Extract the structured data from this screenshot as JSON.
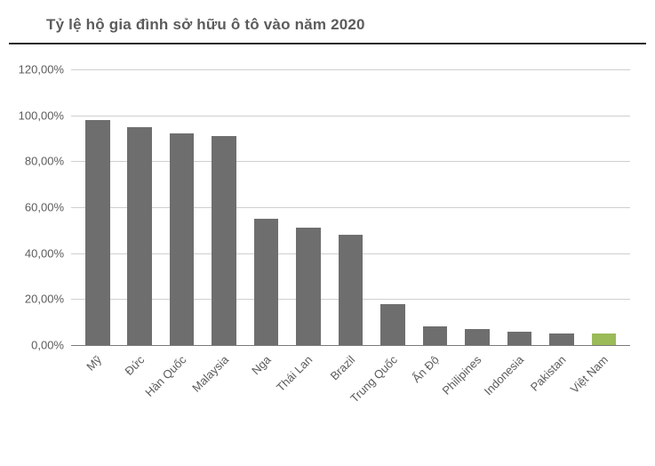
{
  "chart": {
    "type": "bar",
    "title": "Tỷ lệ hộ gia đình sở hữu ô tô vào năm 2020",
    "title_fontsize": 17,
    "title_color": "#5c5c5c",
    "rule_color": "#2a2a2a",
    "background_color": "#ffffff",
    "grid_color": "#cfcfcf",
    "baseline_color": "#7a7a7a",
    "axis_label_color": "#5c5c5c",
    "axis_label_fontsize": 13,
    "bar_width": 0.58,
    "y": {
      "min": 0,
      "max": 120,
      "tick_step": 20,
      "ticks": [
        0,
        20,
        40,
        60,
        80,
        100,
        120
      ],
      "tick_labels": [
        "0,00%",
        "20,00%",
        "40,00%",
        "60,00%",
        "80,00%",
        "100,00%",
        "120,00%"
      ]
    },
    "x_rotation_deg": -45,
    "categories": [
      "Mỹ",
      "Đức",
      "Hàn Quốc",
      "Malaysia",
      "Nga",
      "Thái Lan",
      "Brazil",
      "Trung Quốc",
      "Ấn Độ",
      "Philipines",
      "Indonesia",
      "Pakistan",
      "Việt Nam"
    ],
    "values": [
      98,
      95,
      92,
      91,
      55,
      51,
      48,
      18,
      8,
      7,
      6,
      5,
      5
    ],
    "bar_default_color": "#6e6e6e",
    "bar_highlight_color": "#9bbb59",
    "bar_colors": [
      "#6e6e6e",
      "#6e6e6e",
      "#6e6e6e",
      "#6e6e6e",
      "#6e6e6e",
      "#6e6e6e",
      "#6e6e6e",
      "#6e6e6e",
      "#6e6e6e",
      "#6e6e6e",
      "#6e6e6e",
      "#6e6e6e",
      "#9bbb59"
    ]
  }
}
